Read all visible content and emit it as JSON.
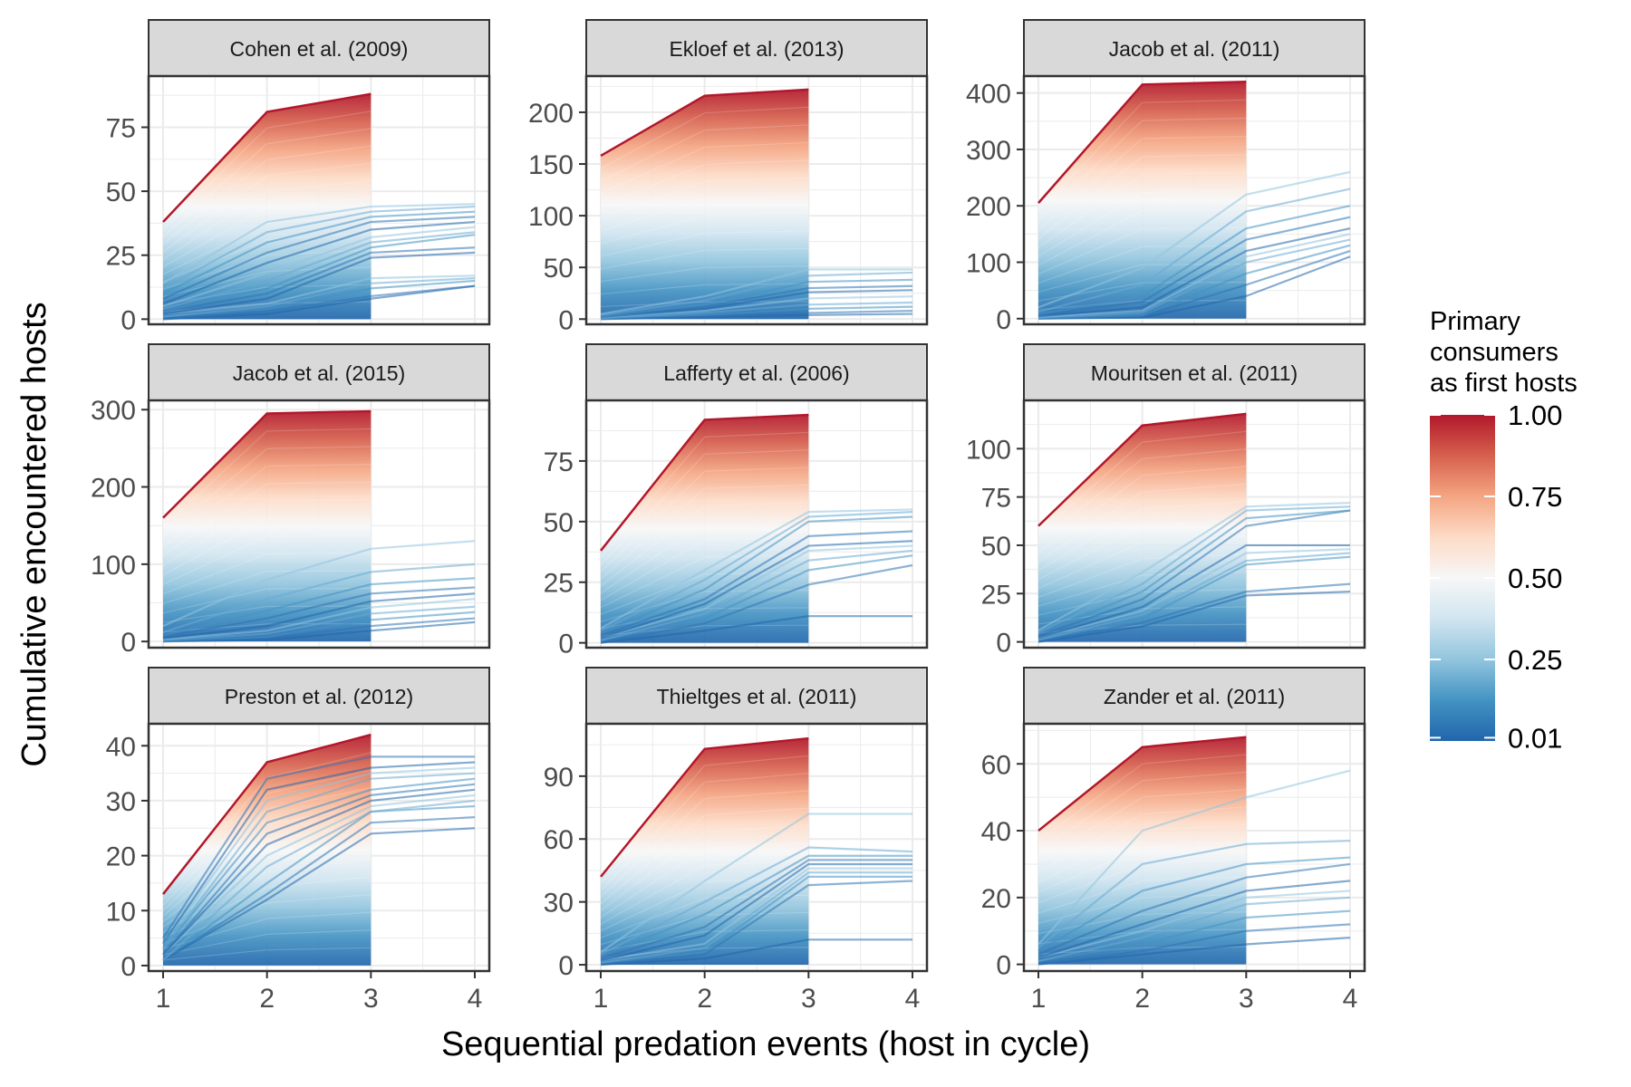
{
  "figure": {
    "ylabel": "Cumulative encountered hosts",
    "xlabel": "Sequential predation events (host in cycle)"
  },
  "legend": {
    "title_lines": [
      "Primary",
      "consumers",
      "as first hosts"
    ],
    "tick_labels": [
      "1.00",
      "0.75",
      "0.50",
      "0.25",
      "0.01"
    ],
    "tick_values": [
      1.0,
      0.75,
      0.5,
      0.25,
      0.01
    ],
    "colors": [
      "#b2182b",
      "#d6604d",
      "#f4a582",
      "#fddbc7",
      "#f7f7f7",
      "#d1e5f0",
      "#92c5de",
      "#4393c3",
      "#2166ac"
    ]
  },
  "chart_data": [
    {
      "type": "line",
      "title": "Cohen et al. (2009)",
      "x": [
        1,
        2,
        3,
        4
      ],
      "xticks": [
        "1",
        "2",
        "3",
        "4"
      ],
      "ylim": [
        -2,
        95
      ],
      "yticks": [
        0,
        25,
        50,
        75
      ],
      "red_envelope": [
        38,
        81,
        88
      ],
      "blue_series": [
        [
          0,
          2,
          8,
          13
        ],
        [
          0,
          3,
          9,
          13
        ],
        [
          1,
          4,
          12,
          15
        ],
        [
          1,
          5,
          14,
          16
        ],
        [
          2,
          6,
          16,
          17
        ],
        [
          2,
          8,
          24,
          26
        ],
        [
          3,
          10,
          26,
          28
        ],
        [
          3,
          12,
          28,
          33
        ],
        [
          4,
          15,
          30,
          34
        ],
        [
          5,
          18,
          32,
          36
        ],
        [
          6,
          22,
          35,
          38
        ],
        [
          8,
          26,
          38,
          40
        ],
        [
          10,
          30,
          40,
          42
        ],
        [
          12,
          34,
          42,
          44
        ],
        [
          14,
          38,
          44,
          45
        ]
      ]
    },
    {
      "type": "line",
      "title": "Ekloef et al. (2013)",
      "x": [
        1,
        2,
        3,
        4
      ],
      "xticks": [
        "1",
        "2",
        "3",
        "4"
      ],
      "ylim": [
        -5,
        235
      ],
      "yticks": [
        0,
        50,
        100,
        150,
        200
      ],
      "red_envelope": [
        158,
        216,
        222
      ],
      "blue_series": [
        [
          0,
          2,
          4,
          5
        ],
        [
          0,
          3,
          6,
          8
        ],
        [
          1,
          4,
          10,
          12
        ],
        [
          1,
          6,
          14,
          16
        ],
        [
          2,
          8,
          20,
          22
        ],
        [
          2,
          10,
          26,
          28
        ],
        [
          3,
          12,
          30,
          32
        ],
        [
          3,
          14,
          36,
          38
        ],
        [
          4,
          18,
          42,
          45
        ],
        [
          5,
          22,
          48,
          48
        ]
      ]
    },
    {
      "type": "line",
      "title": "Jacob et al. (2011)",
      "x": [
        1,
        2,
        3,
        4
      ],
      "xticks": [
        "1",
        "2",
        "3",
        "4"
      ],
      "ylim": [
        -10,
        430
      ],
      "yticks": [
        0,
        100,
        200,
        300,
        400
      ],
      "red_envelope": [
        205,
        415,
        420
      ],
      "blue_series": [
        [
          0,
          2,
          40,
          110
        ],
        [
          0,
          4,
          60,
          120
        ],
        [
          1,
          6,
          80,
          130
        ],
        [
          2,
          10,
          100,
          140
        ],
        [
          3,
          14,
          110,
          150
        ],
        [
          4,
          20,
          120,
          160
        ],
        [
          6,
          30,
          140,
          180
        ],
        [
          8,
          40,
          160,
          200
        ],
        [
          12,
          60,
          190,
          230
        ],
        [
          20,
          90,
          220,
          260
        ]
      ]
    },
    {
      "type": "line",
      "title": "Jacob et al. (2015)",
      "x": [
        1,
        2,
        3,
        4
      ],
      "xticks": [
        "1",
        "2",
        "3",
        "4"
      ],
      "ylim": [
        -8,
        312
      ],
      "yticks": [
        0,
        100,
        200,
        300
      ],
      "red_envelope": [
        160,
        295,
        298
      ],
      "blue_series": [
        [
          0,
          2,
          14,
          25
        ],
        [
          0,
          4,
          20,
          30
        ],
        [
          1,
          6,
          28,
          38
        ],
        [
          2,
          10,
          36,
          45
        ],
        [
          3,
          14,
          44,
          55
        ],
        [
          4,
          20,
          52,
          62
        ],
        [
          6,
          30,
          62,
          70
        ],
        [
          8,
          40,
          74,
          82
        ],
        [
          12,
          55,
          90,
          100
        ],
        [
          20,
          80,
          120,
          130
        ]
      ]
    },
    {
      "type": "line",
      "title": "Lafferty et al. (2006)",
      "x": [
        1,
        2,
        3,
        4
      ],
      "xticks": [
        "1",
        "2",
        "3",
        "4"
      ],
      "ylim": [
        -2,
        100
      ],
      "yticks": [
        0,
        25,
        50,
        75
      ],
      "red_envelope": [
        38,
        92,
        94
      ],
      "blue_series": [
        [
          0,
          5,
          11,
          11
        ],
        [
          0,
          8,
          24,
          32
        ],
        [
          1,
          10,
          30,
          36
        ],
        [
          1,
          12,
          34,
          38
        ],
        [
          2,
          14,
          38,
          40
        ],
        [
          2,
          16,
          40,
          42
        ],
        [
          3,
          18,
          44,
          46
        ],
        [
          4,
          22,
          50,
          52
        ],
        [
          5,
          26,
          52,
          54
        ],
        [
          6,
          30,
          54,
          55
        ]
      ]
    },
    {
      "type": "line",
      "title": "Mouritsen et al. (2011)",
      "x": [
        1,
        2,
        3,
        4
      ],
      "xticks": [
        "1",
        "2",
        "3",
        "4"
      ],
      "ylim": [
        -3,
        125
      ],
      "yticks": [
        0,
        25,
        50,
        75,
        100
      ],
      "red_envelope": [
        60,
        112,
        118
      ],
      "blue_series": [
        [
          0,
          8,
          24,
          26
        ],
        [
          0,
          10,
          26,
          30
        ],
        [
          1,
          12,
          40,
          44
        ],
        [
          1,
          14,
          42,
          46
        ],
        [
          2,
          16,
          46,
          48
        ],
        [
          2,
          18,
          50,
          50
        ],
        [
          3,
          22,
          60,
          68
        ],
        [
          4,
          26,
          64,
          68
        ],
        [
          5,
          30,
          68,
          70
        ],
        [
          6,
          36,
          70,
          72
        ]
      ]
    },
    {
      "type": "line",
      "title": "Preston et al. (2012)",
      "x": [
        1,
        2,
        3,
        4
      ],
      "xticks": [
        "1",
        "2",
        "3",
        "4"
      ],
      "ylim": [
        -1,
        44
      ],
      "yticks": [
        0,
        10,
        20,
        30,
        40
      ],
      "red_envelope": [
        13,
        37,
        42
      ],
      "blue_series": [
        [
          1,
          12,
          24,
          25
        ],
        [
          1,
          13,
          26,
          27
        ],
        [
          1,
          15,
          28,
          29
        ],
        [
          1,
          18,
          28,
          30
        ],
        [
          2,
          20,
          29,
          31
        ],
        [
          2,
          22,
          30,
          32
        ],
        [
          2,
          24,
          31,
          33
        ],
        [
          3,
          26,
          32,
          34
        ],
        [
          3,
          28,
          34,
          35
        ],
        [
          4,
          30,
          35,
          36
        ],
        [
          4,
          32,
          36,
          37
        ],
        [
          5,
          34,
          38,
          38
        ]
      ]
    },
    {
      "type": "line",
      "title": "Thieltges et al. (2011)",
      "x": [
        1,
        2,
        3,
        4
      ],
      "xticks": [
        "1",
        "2",
        "3",
        "4"
      ],
      "ylim": [
        -3,
        115
      ],
      "yticks": [
        0,
        30,
        60,
        90
      ],
      "red_envelope": [
        42,
        103,
        108
      ],
      "blue_series": [
        [
          0,
          3,
          12,
          12
        ],
        [
          0,
          5,
          38,
          40
        ],
        [
          1,
          6,
          42,
          42
        ],
        [
          1,
          8,
          44,
          44
        ],
        [
          2,
          10,
          46,
          46
        ],
        [
          2,
          14,
          48,
          48
        ],
        [
          3,
          18,
          50,
          50
        ],
        [
          4,
          24,
          52,
          52
        ],
        [
          5,
          30,
          56,
          54
        ],
        [
          6,
          40,
          72,
          72
        ]
      ]
    },
    {
      "type": "line",
      "title": "Zander et al. (2011)",
      "x": [
        1,
        2,
        3,
        4
      ],
      "xticks": [
        "1",
        "2",
        "3",
        "4"
      ],
      "ylim": [
        -2,
        72
      ],
      "yticks": [
        0,
        20,
        40,
        60
      ],
      "red_envelope": [
        40,
        65,
        68
      ],
      "blue_series": [
        [
          0,
          3,
          6,
          8
        ],
        [
          0,
          4,
          10,
          12
        ],
        [
          1,
          6,
          14,
          16
        ],
        [
          1,
          8,
          18,
          20
        ],
        [
          2,
          10,
          20,
          22
        ],
        [
          2,
          12,
          22,
          25
        ],
        [
          3,
          16,
          26,
          30
        ],
        [
          4,
          22,
          30,
          32
        ],
        [
          5,
          30,
          36,
          37
        ],
        [
          6,
          40,
          50,
          58
        ]
      ]
    }
  ]
}
